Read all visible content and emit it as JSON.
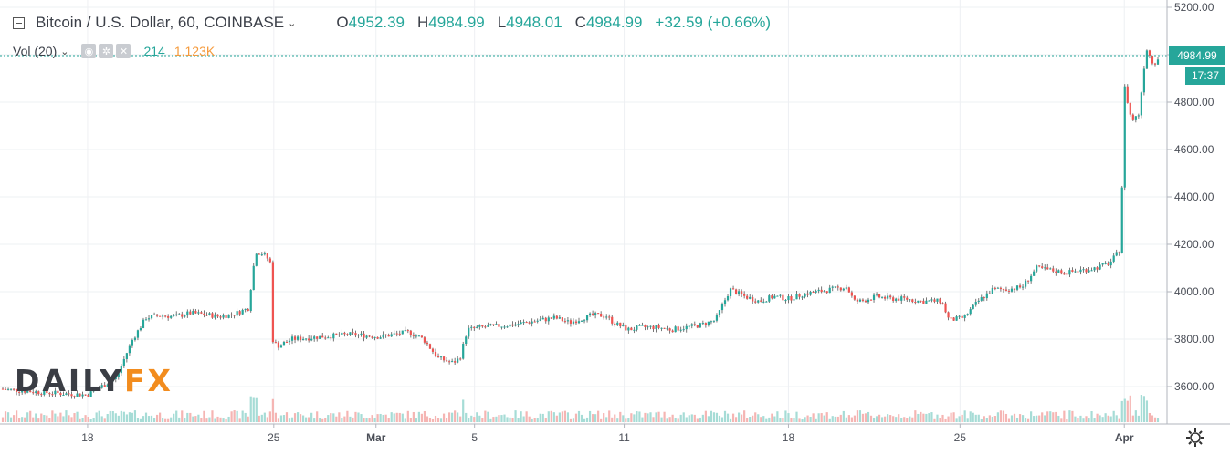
{
  "header": {
    "symbol": "Bitcoin / U.S. Dollar, 60, COINBASE",
    "open_label": "O",
    "open": "4952.39",
    "high_label": "H",
    "high": "4984.99",
    "low_label": "L",
    "low": "4948.01",
    "close_label": "C",
    "close": "4984.99",
    "change": "+32.59 (+0.66%)"
  },
  "volume": {
    "label": "Vol (20)",
    "value_a": "214",
    "value_b": "1.123K"
  },
  "price_tag": {
    "price": "4984.99",
    "countdown": "17:37"
  },
  "logo": {
    "part1": "DAILY",
    "part2": "FX"
  },
  "colors": {
    "up": "#26a69a",
    "down": "#ef5350",
    "vol_up": "#a6dcd6",
    "vol_down": "#f5b5b3",
    "grid": "#eef0f3"
  },
  "chart_data": {
    "type": "candlestick",
    "ylim": [
      3450,
      5200
    ],
    "y_ticks": [
      3600,
      3800,
      4000,
      4200,
      4400,
      4600,
      4800,
      5000,
      5200
    ],
    "y_tick_labels": [
      "3600.00",
      "3800.00",
      "4000.00",
      "4200.00",
      "4400.00",
      "4600.00",
      "4800.00",
      "5000.00",
      "5200.00"
    ],
    "x_tick_labels": [
      "18",
      "25",
      "Mar",
      "5",
      "11",
      "18",
      "25",
      "Apr"
    ],
    "series": [
      {
        "values": [
          [
            0,
            3590
          ],
          [
            6,
            3575
          ],
          [
            12,
            3565
          ],
          [
            16,
            3640
          ],
          [
            18,
            3790
          ],
          [
            20,
            3890
          ],
          [
            22,
            3900
          ],
          [
            24,
            3895
          ],
          [
            26,
            3910
          ],
          [
            28,
            3905
          ],
          [
            30,
            3895
          ],
          [
            32,
            3905
          ],
          [
            34,
            3930
          ],
          [
            35,
            4170
          ],
          [
            36,
            4160
          ],
          [
            37,
            4130
          ],
          [
            37.3,
            3800
          ],
          [
            38,
            3770
          ],
          [
            40,
            3800
          ],
          [
            44,
            3810
          ],
          [
            48,
            3820
          ],
          [
            52,
            3810
          ],
          [
            56,
            3830
          ],
          [
            58,
            3800
          ],
          [
            60,
            3720
          ],
          [
            62,
            3700
          ],
          [
            63,
            3720
          ],
          [
            64,
            3840
          ],
          [
            66,
            3850
          ],
          [
            70,
            3860
          ],
          [
            72,
            3870
          ],
          [
            74,
            3880
          ],
          [
            76,
            3890
          ],
          [
            78,
            3870
          ],
          [
            81,
            3900
          ],
          [
            83,
            3900
          ],
          [
            84,
            3870
          ],
          [
            86,
            3840
          ],
          [
            88,
            3850
          ],
          [
            90,
            3850
          ],
          [
            92,
            3840
          ],
          [
            94,
            3850
          ],
          [
            96,
            3860
          ],
          [
            98,
            3880
          ],
          [
            100,
            4010
          ],
          [
            102,
            3980
          ],
          [
            104,
            3960
          ],
          [
            106,
            3980
          ],
          [
            108,
            3970
          ],
          [
            110,
            3990
          ],
          [
            112,
            4000
          ],
          [
            114,
            4010
          ],
          [
            116,
            4020
          ],
          [
            117,
            3960
          ],
          [
            118,
            3960
          ],
          [
            120,
            3980
          ],
          [
            122,
            3970
          ],
          [
            124,
            3970
          ],
          [
            126,
            3960
          ],
          [
            129,
            3960
          ],
          [
            130,
            3880
          ],
          [
            132,
            3890
          ],
          [
            134,
            3960
          ],
          [
            136,
            4010
          ],
          [
            138,
            4010
          ],
          [
            140,
            4020
          ],
          [
            142,
            4100
          ],
          [
            144,
            4090
          ],
          [
            146,
            4080
          ],
          [
            148,
            4090
          ],
          [
            150,
            4100
          ],
          [
            152,
            4120
          ],
          [
            153.5,
            4180
          ],
          [
            154,
            4870
          ],
          [
            155,
            4720
          ],
          [
            156,
            4750
          ],
          [
            157,
            5030
          ],
          [
            158,
            4960
          ],
          [
            158.6,
            4984.99
          ]
        ]
      }
    ],
    "x_domain": [
      0,
      158.6
    ]
  }
}
